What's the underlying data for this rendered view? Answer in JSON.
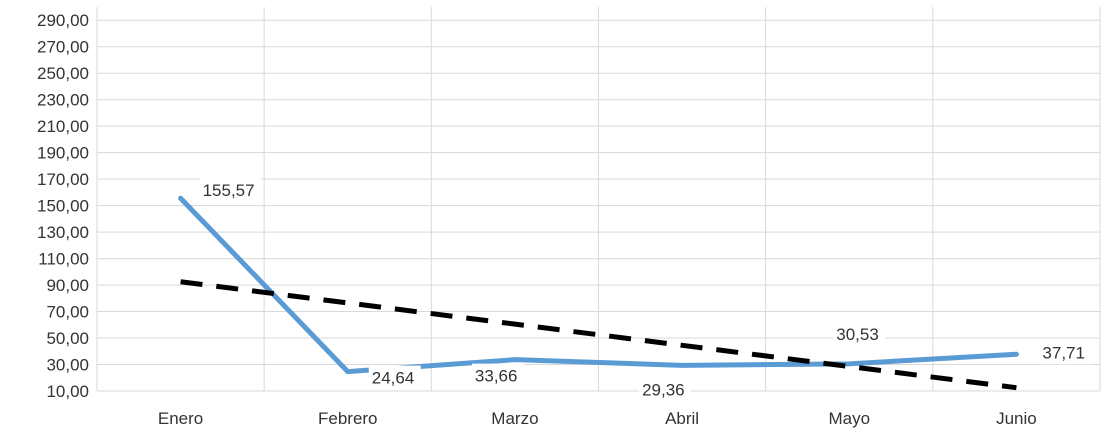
{
  "chart_data": {
    "type": "line",
    "categories": [
      "Enero",
      "Febrero",
      "Marzo",
      "Abril",
      "Mayo",
      "Junio"
    ],
    "series": [
      {
        "values": [
          155.57,
          24.64,
          33.66,
          29.36,
          30.53,
          37.71
        ],
        "data_labels": [
          "155,57",
          "24,64",
          "33,66",
          "29,36",
          "30,53",
          "37,71"
        ],
        "color": "#5b9bd5",
        "style": "solid"
      },
      {
        "kind": "trendline",
        "values": [
          92.5,
          76.5,
          60.5,
          44.5,
          28.5,
          12.5
        ],
        "color": "#000000",
        "style": "dashed"
      }
    ],
    "y_ticks": [
      "10,00",
      "30,00",
      "50,00",
      "70,00",
      "90,00",
      "110,00",
      "130,00",
      "150,00",
      "170,00",
      "190,00",
      "210,00",
      "230,00",
      "250,00",
      "270,00",
      "290,00"
    ],
    "ylim": [
      10,
      300
    ],
    "grid": true,
    "title": "",
    "xlabel": "",
    "ylabel": ""
  }
}
